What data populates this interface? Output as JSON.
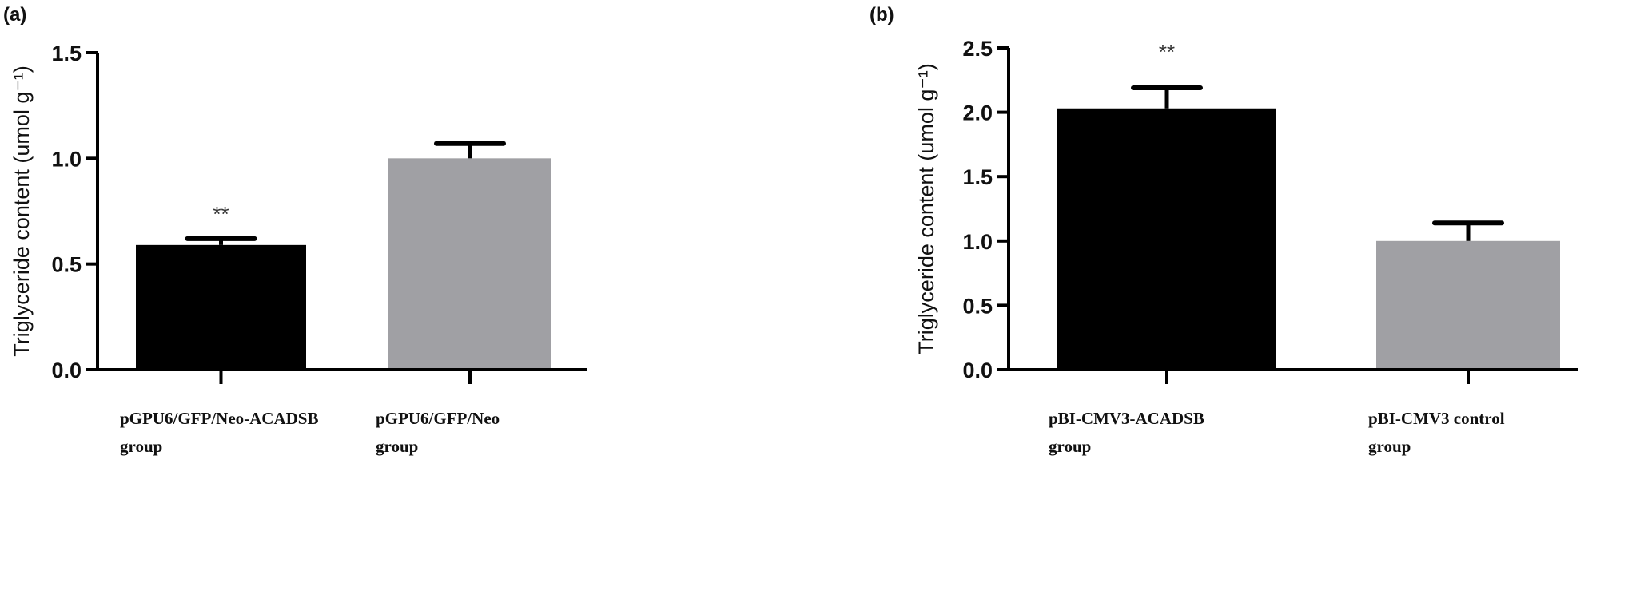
{
  "chart_data": [
    {
      "type": "bar",
      "panel_label": "(a)",
      "ylabel": "Triglyceride content (umol g⁻¹)",
      "ylim": [
        0,
        1.5
      ],
      "yticks": [
        "0.0",
        "0.5",
        "1.0",
        "1.5"
      ],
      "categories": [
        [
          "pGPU6/GFP/Neo-ACADSB",
          "group"
        ],
        [
          "pGPU6/GFP/Neo",
          "group"
        ]
      ],
      "values": [
        0.59,
        1.0
      ],
      "errors": [
        0.03,
        0.07
      ],
      "colors": [
        "#000000",
        "#a0a0a4"
      ],
      "annotations": [
        "**",
        ""
      ]
    },
    {
      "type": "bar",
      "panel_label": "(b)",
      "ylabel": "Triglyceride content (umol g⁻¹)",
      "ylim": [
        0,
        2.5
      ],
      "yticks": [
        "0.0",
        "0.5",
        "1.0",
        "1.5",
        "2.0",
        "2.5"
      ],
      "categories": [
        [
          "pBI-CMV3-ACADSB",
          "group"
        ],
        [
          "pBI-CMV3 control",
          "group"
        ]
      ],
      "values": [
        2.03,
        1.0
      ],
      "errors": [
        0.16,
        0.14
      ],
      "colors": [
        "#000000",
        "#a0a0a4"
      ],
      "annotations": [
        "**",
        ""
      ]
    }
  ]
}
